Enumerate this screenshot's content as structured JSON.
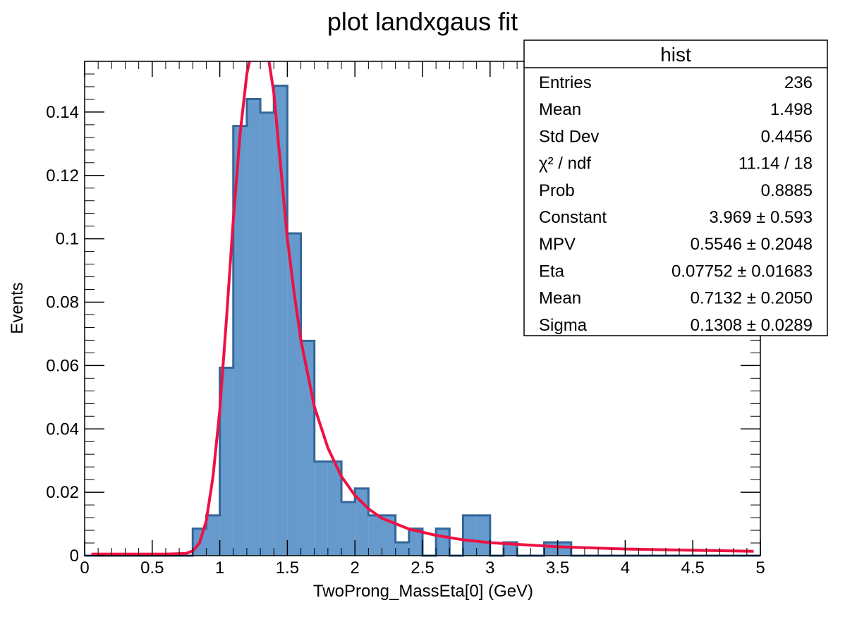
{
  "chart_data": {
    "type": "bar",
    "title": "plot landxgaus fit",
    "xlabel": "TwoProng_MassEta[0] (GeV)",
    "ylabel": "Events",
    "xlim": [
      0,
      5
    ],
    "ylim": [
      0,
      0.156
    ],
    "x_ticks": [
      "0",
      "0.5",
      "1",
      "1.5",
      "2",
      "2.5",
      "3",
      "3.5",
      "4",
      "4.5",
      "5"
    ],
    "y_ticks": [
      "0",
      "0.02",
      "0.04",
      "0.06",
      "0.08",
      "0.1",
      "0.12",
      "0.14"
    ],
    "bin_width": 0.1,
    "bin_edges_start": 0.0,
    "values": [
      0,
      0,
      0,
      0,
      0,
      0,
      0,
      0,
      0.0085,
      0.0127,
      0.0593,
      0.1356,
      0.1441,
      0.1398,
      0.1483,
      0.1017,
      0.0678,
      0.0297,
      0.0297,
      0.0169,
      0.0212,
      0.0127,
      0.0127,
      0.0042,
      0.0085,
      0,
      0.0085,
      0,
      0.0127,
      0.0127,
      0,
      0.0042,
      0,
      0,
      0.0042,
      0.0042,
      0,
      0,
      0,
      0,
      0,
      0,
      0,
      0,
      0,
      0,
      0,
      0,
      0,
      0
    ],
    "fit_curve": {
      "name": "landxgaus",
      "x": [
        0.05,
        0.6,
        0.75,
        0.8,
        0.85,
        0.9,
        0.95,
        1.0,
        1.05,
        1.1,
        1.15,
        1.2,
        1.25,
        1.3,
        1.35,
        1.4,
        1.45,
        1.5,
        1.55,
        1.6,
        1.7,
        1.8,
        1.9,
        2.0,
        2.1,
        2.2,
        2.4,
        2.6,
        2.8,
        3.0,
        3.5,
        4.0,
        4.5,
        4.95
      ],
      "y": [
        0.0005,
        0.0005,
        0.0007,
        0.0015,
        0.004,
        0.011,
        0.025,
        0.046,
        0.075,
        0.106,
        0.133,
        0.152,
        0.162,
        0.163,
        0.16,
        0.146,
        0.123,
        0.1,
        0.083,
        0.068,
        0.047,
        0.034,
        0.025,
        0.019,
        0.0148,
        0.0118,
        0.0084,
        0.0064,
        0.005,
        0.0041,
        0.0028,
        0.0021,
        0.0017,
        0.0014
      ]
    },
    "colors": {
      "bar_fill": "#6699cc",
      "bar_outline": "#336699",
      "fit_line": "#ee1144"
    }
  },
  "stats_box": {
    "title": "hist",
    "rows": [
      {
        "label": "Entries",
        "value": "236"
      },
      {
        "label": "Mean",
        "value": "1.498"
      },
      {
        "label": "Std Dev",
        "value": "0.4456"
      },
      {
        "label": "χ² / ndf",
        "value": "11.14 / 18"
      },
      {
        "label": "Prob",
        "value": "0.8885"
      },
      {
        "label": "Constant",
        "value": "3.969 ± 0.593"
      },
      {
        "label": "MPV",
        "value": "0.5546 ± 0.2048"
      },
      {
        "label": "Eta",
        "value": "0.07752 ± 0.01683"
      },
      {
        "label": "Mean",
        "value": "0.7132 ± 0.2050"
      },
      {
        "label": "Sigma",
        "value": "0.1308 ± 0.0289"
      }
    ]
  }
}
